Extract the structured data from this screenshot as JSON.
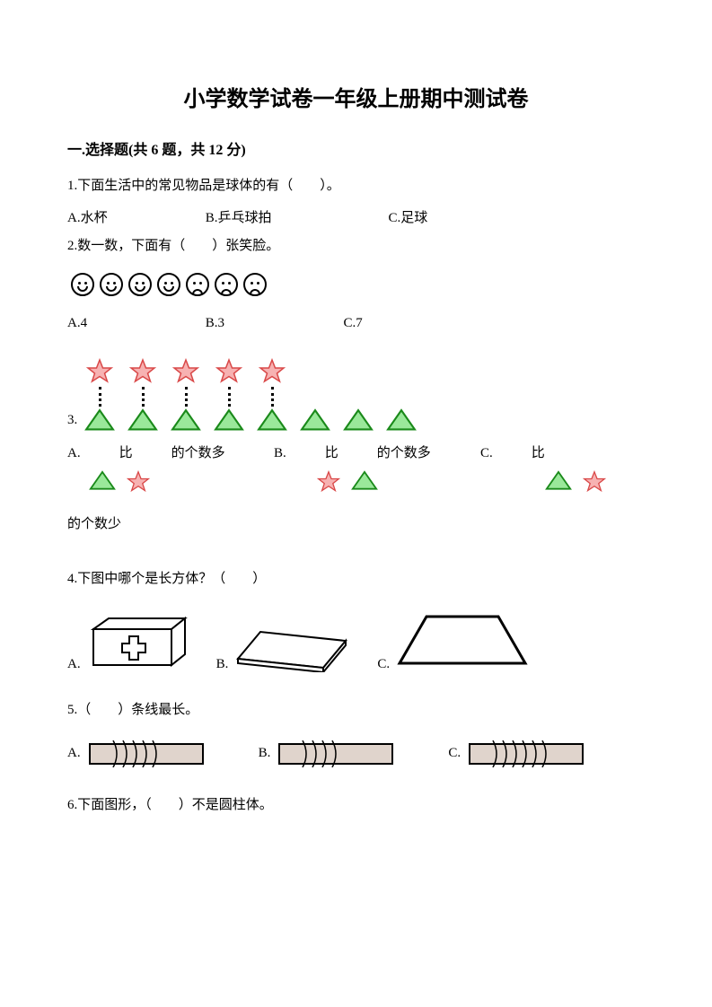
{
  "title": "小学数学试卷一年级上册期中测试卷",
  "section1": {
    "header": "一.选择题(共 6 题，共 12 分)",
    "q1": {
      "text": "1.下面生活中的常见物品是球体的有（　　）。",
      "a": "A.水杯",
      "b": "B.乒乓球拍",
      "c": "C.足球"
    },
    "q2": {
      "text": "2.数一数，下面有（　　）张笑脸。",
      "a": "A.4",
      "b": "B.3",
      "c": "C.7",
      "faces": [
        "smile",
        "smile",
        "smile",
        "smile",
        "sad",
        "sad",
        "sad"
      ]
    },
    "q3": {
      "label": "3.",
      "stars": 5,
      "triangles": 8,
      "pairs": 5,
      "optA_pre": "A.　",
      "optA_mid": "比　",
      "optA_post": "的个数多",
      "optB_pre": "B.　",
      "optB_mid": "比　",
      "optB_post": "的个数多",
      "optC_pre": "C.　",
      "optC_mid": "比",
      "cont": "的个数少",
      "colors": {
        "star_fill": "#f7b2b2",
        "star_stroke": "#d94848",
        "tri_fill": "#9ae89a",
        "tri_stroke": "#1a8a1a"
      }
    },
    "q4": {
      "text": "4.下图中哪个是长方体？（　　）",
      "a": "A.",
      "b": "B.",
      "c": "C."
    },
    "q5": {
      "text": "5.（　　）条线最长。",
      "a": "A.",
      "b": "B.",
      "c": "C.",
      "bar_fill": "#e0d4cc",
      "bar_stroke": "#000000"
    },
    "q6": {
      "text": "6.下面图形，（　　）不是圆柱体。"
    }
  }
}
